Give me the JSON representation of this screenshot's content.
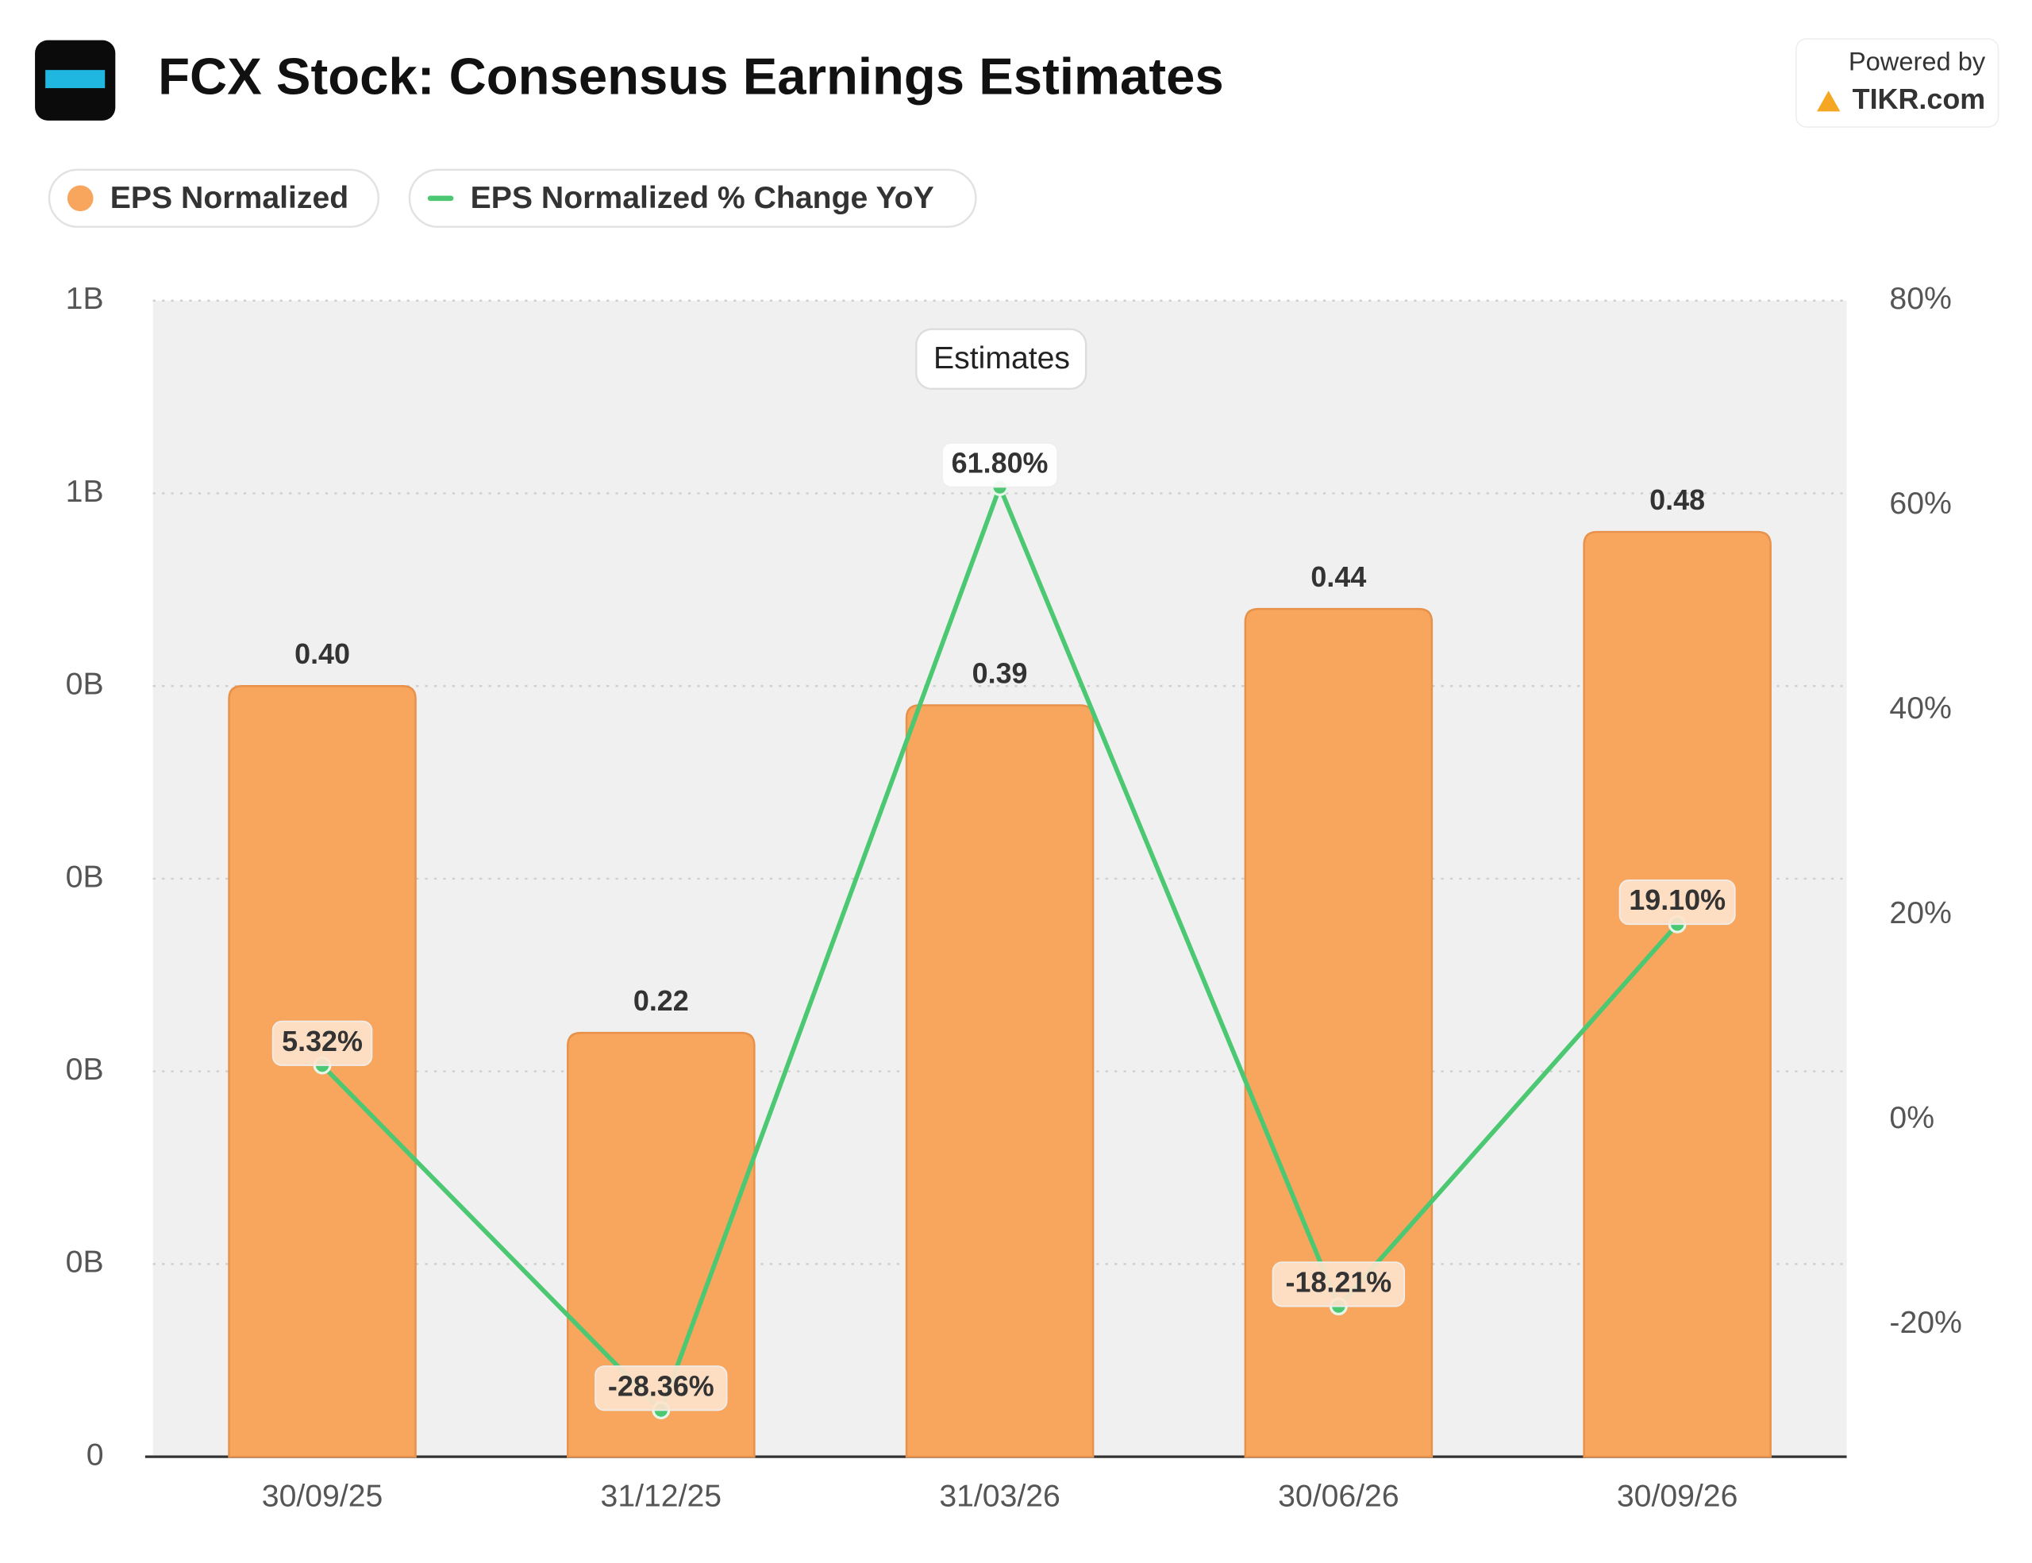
{
  "chart_data": {
    "type": "bar",
    "title": "FCX Stock: Consensus Earnings Estimates",
    "brand_line1": "Powered by",
    "brand_line2": "TIKR.com",
    "annotation": "Estimates",
    "categories": [
      "30/09/25",
      "31/12/25",
      "31/03/26",
      "30/06/26",
      "30/09/26"
    ],
    "series": [
      {
        "name": "EPS Normalized",
        "type": "bar",
        "color": "#f8a65e",
        "values": [
          0.4,
          0.22,
          0.39,
          0.44,
          0.48
        ],
        "value_labels": [
          "0.40",
          "0.22",
          "0.39",
          "0.44",
          "0.48"
        ]
      },
      {
        "name": "EPS Normalized % Change YoY",
        "type": "line",
        "axis": "y2",
        "color": "#4cc873",
        "values": [
          5.32,
          -28.36,
          61.8,
          -18.21,
          19.1
        ],
        "value_labels": [
          "5.32%",
          "-28.36%",
          "61.80%",
          "-18.21%",
          "19.10%"
        ]
      }
    ],
    "ylim": [
      0,
      0.6
    ],
    "yticks": [
      0,
      {
        "value": 0.1,
        "label": "0B"
      },
      {
        "value": 0.2,
        "label": "0B"
      },
      {
        "value": 0.3,
        "label": "0B"
      },
      {
        "value": 0.4,
        "label": "0B"
      },
      {
        "value": 0.5,
        "label": "1B"
      },
      {
        "value": 0.6,
        "label": "1B"
      }
    ],
    "y2lim": [
      -32.9,
      80
    ],
    "y2ticks": [
      {
        "value": -20,
        "label": "-20%"
      },
      {
        "value": 0,
        "label": "0%"
      },
      {
        "value": 20,
        "label": "20%"
      },
      {
        "value": 40,
        "label": "40%"
      },
      {
        "value": 60,
        "label": "60%"
      },
      {
        "value": 80,
        "label": "80%"
      }
    ],
    "grid": true
  }
}
